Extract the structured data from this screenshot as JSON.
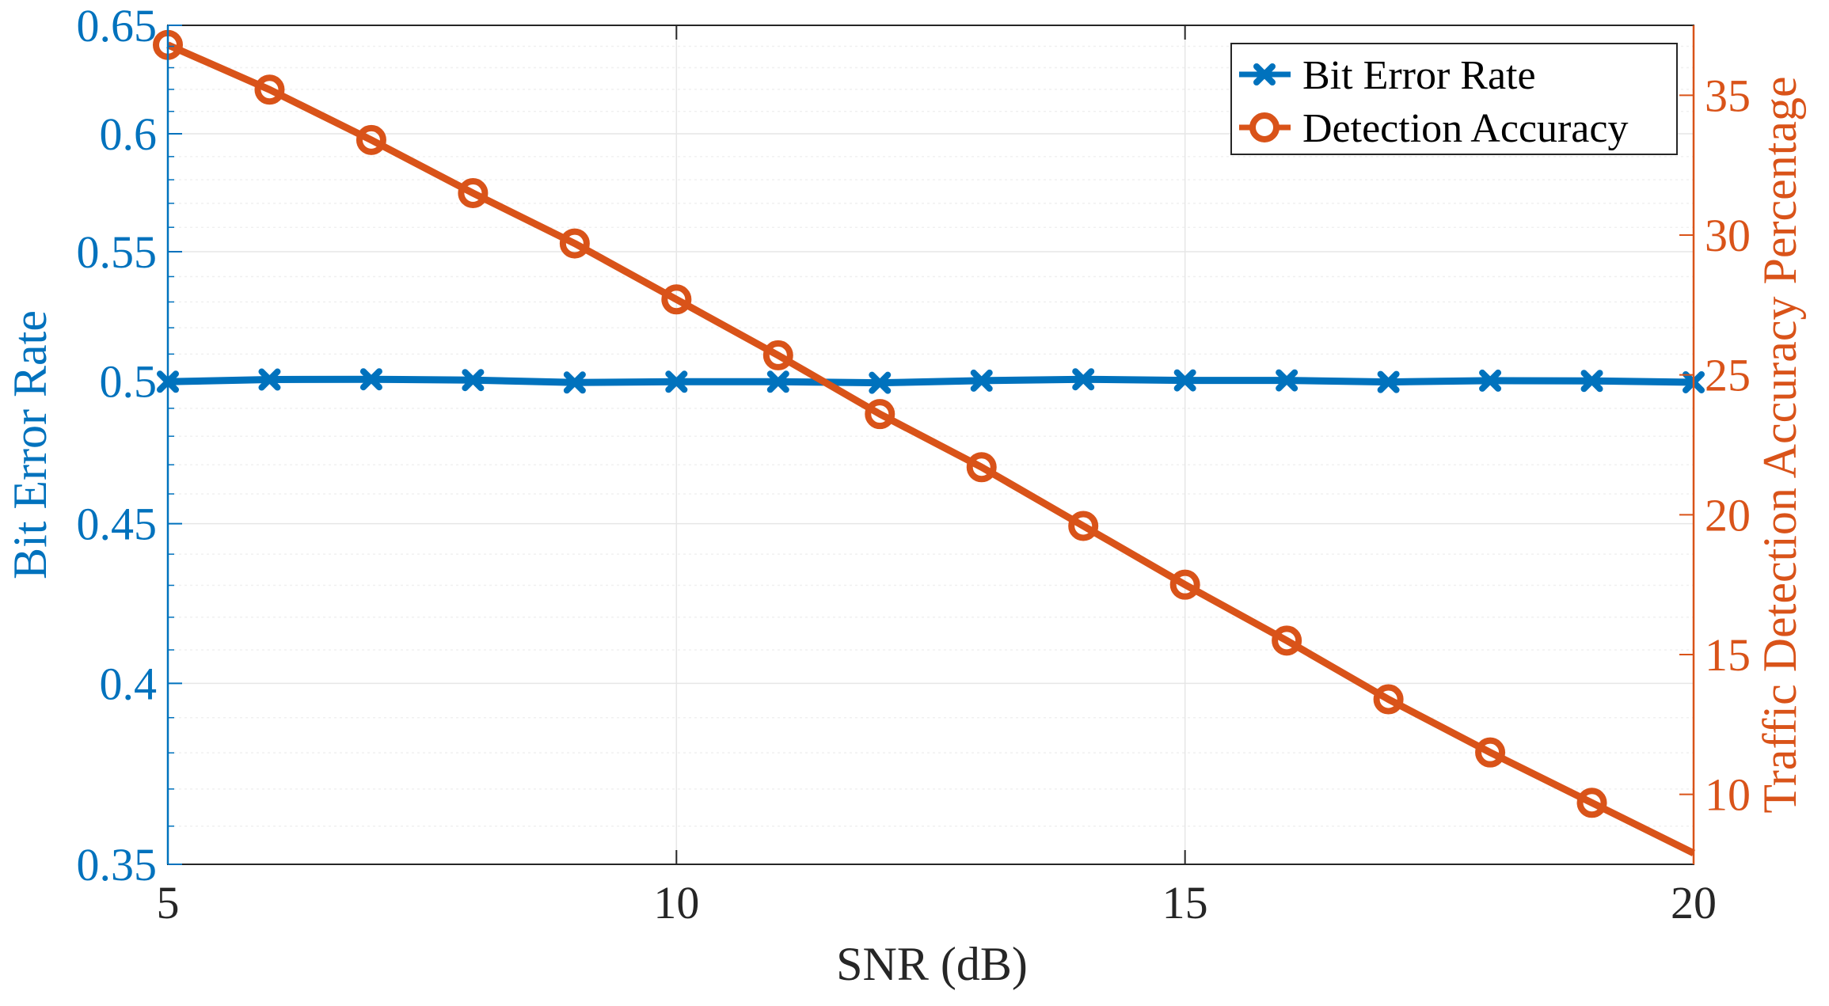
{
  "chart_data": {
    "type": "line",
    "xlabel": "SNR (dB)",
    "ylabel_left": "Bit Error Rate",
    "ylabel_right": "Traffic Detection Accuracy Percentage",
    "xlim": [
      5,
      20
    ],
    "ylim_left": [
      0.35,
      0.65
    ],
    "yscale_left": "log",
    "ylim_right": [
      7.5,
      37.5
    ],
    "xticks": [
      5,
      10,
      15,
      20
    ],
    "yticks_left": [
      0.35,
      0.4,
      0.45,
      0.5,
      0.55,
      0.6,
      0.65
    ],
    "yticks_left_labels": [
      "0.35",
      "0.4",
      "0.45",
      "0.5",
      "0.55",
      "0.6",
      "0.65"
    ],
    "yticks_right": [
      10,
      15,
      20,
      25,
      30,
      35
    ],
    "grid": true,
    "legend_position": "top-right",
    "colors": {
      "ber": "#0072BD",
      "accuracy": "#D95319",
      "grid": "#e6e6e6",
      "axes": "#262626"
    },
    "x": [
      5,
      6,
      7,
      8,
      9,
      10,
      11,
      12,
      13,
      14,
      15,
      16,
      17,
      18,
      19,
      20
    ],
    "series": [
      {
        "name": "Bit Error Rate",
        "axis": "left",
        "marker": "x",
        "values": [
          0.4997,
          0.5005,
          0.5006,
          0.5003,
          0.4994,
          0.4997,
          0.4997,
          0.4993,
          0.5001,
          0.5006,
          0.5002,
          0.5002,
          0.4996,
          0.5001,
          0.5,
          0.4995
        ]
      },
      {
        "name": "Detection Accuracy",
        "axis": "right",
        "marker": "o",
        "values": [
          36.8,
          35.2,
          33.4,
          31.5,
          29.7,
          27.7,
          25.7,
          23.6,
          21.7,
          19.6,
          17.5,
          15.5,
          13.4,
          11.5,
          9.7,
          7.9
        ]
      }
    ]
  }
}
